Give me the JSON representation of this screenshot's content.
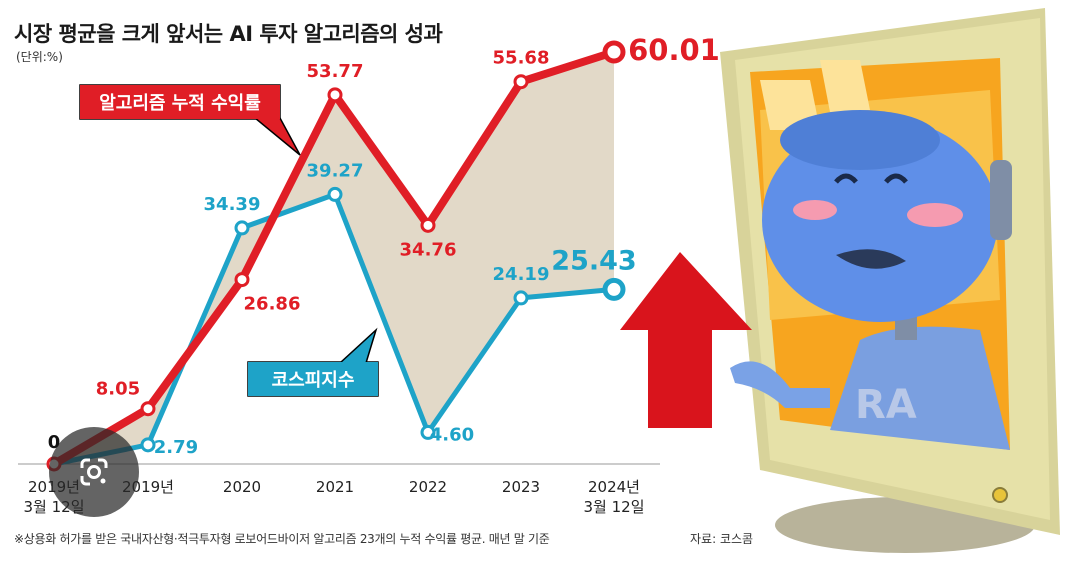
{
  "title": "시장 평균을 크게 앞서는 AI 투자 알고리즘의 성과",
  "unit": "(단위:%)",
  "footnote": "※상용화 허가를 받은 국내자산형·적극투자형 로보어드바이저 알고리즘 23개의 누적 수익률 평균. 매년 말 기준",
  "source": "자료: 코스콤",
  "robot_label": "RA",
  "colors": {
    "algo": "#e01e26",
    "kospi": "#1ea3c8",
    "fill": "#e2d9c8",
    "arrow": "#d9141c"
  },
  "icons": [
    "google-lens-icon"
  ],
  "chart_data": {
    "type": "line",
    "categories": [
      "2019년\n3월 12일",
      "2019년",
      "2020",
      "2021",
      "2022",
      "2023",
      "2024년\n3월 12일"
    ],
    "series": [
      {
        "name": "알고리즘 누적 수익률",
        "values": [
          0,
          8.05,
          26.86,
          53.77,
          34.76,
          55.68,
          60.01
        ],
        "labels": [
          "0",
          "8.05",
          "26.86",
          "53.77",
          "34.76",
          "55.68",
          "60.01"
        ]
      },
      {
        "name": "코스피지수",
        "values": [
          0,
          2.79,
          34.39,
          39.27,
          4.6,
          24.19,
          25.43
        ],
        "labels": [
          "",
          "2.79",
          "34.39",
          "39.27",
          "4.60",
          "24.19",
          "25.43"
        ]
      }
    ],
    "ylim": [
      0,
      60.01
    ]
  }
}
